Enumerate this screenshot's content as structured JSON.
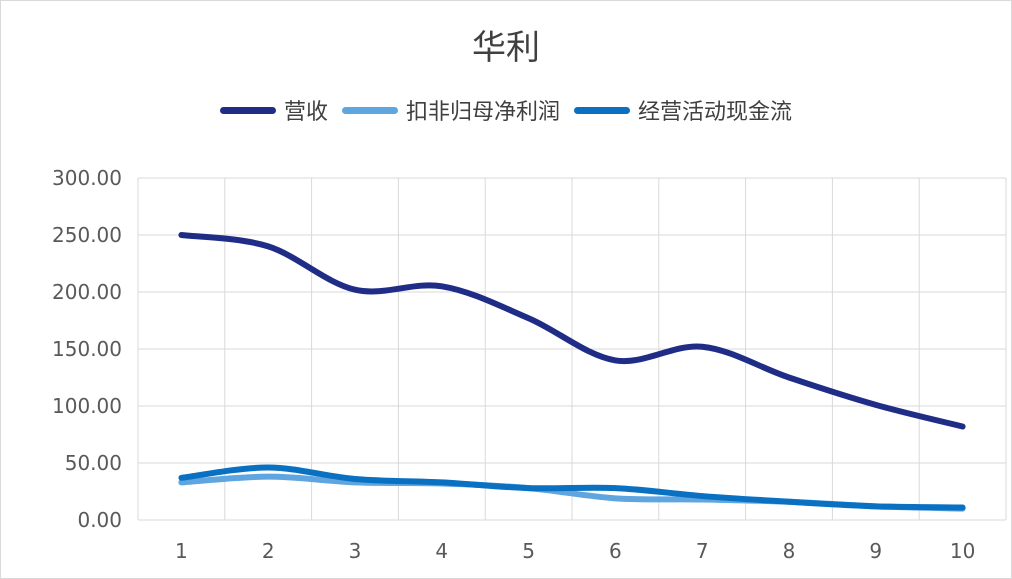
{
  "chart_data": {
    "type": "line",
    "title": "华利",
    "xlabel": "",
    "ylabel": "",
    "categories": [
      "1",
      "2",
      "3",
      "4",
      "5",
      "6",
      "7",
      "8",
      "9",
      "10"
    ],
    "ylim": [
      0,
      300
    ],
    "yticks": [
      "0.00",
      "50.00",
      "100.00",
      "150.00",
      "200.00",
      "250.00",
      "300.00"
    ],
    "grid": true,
    "legend_position": "top",
    "smooth": true,
    "series": [
      {
        "name": "营收",
        "color": "#1f2d86",
        "values": [
          250,
          240,
          202,
          205,
          177,
          140,
          152,
          125,
          101,
          82
        ]
      },
      {
        "name": "扣非归母净利润",
        "color": "#5fa6e0",
        "values": [
          33,
          38,
          33,
          32,
          28,
          19,
          18,
          16,
          12,
          10
        ]
      },
      {
        "name": "经营活动现金流",
        "color": "#0a70c2",
        "values": [
          37,
          46,
          36,
          33,
          28,
          28,
          21,
          16,
          12,
          11
        ]
      }
    ]
  }
}
